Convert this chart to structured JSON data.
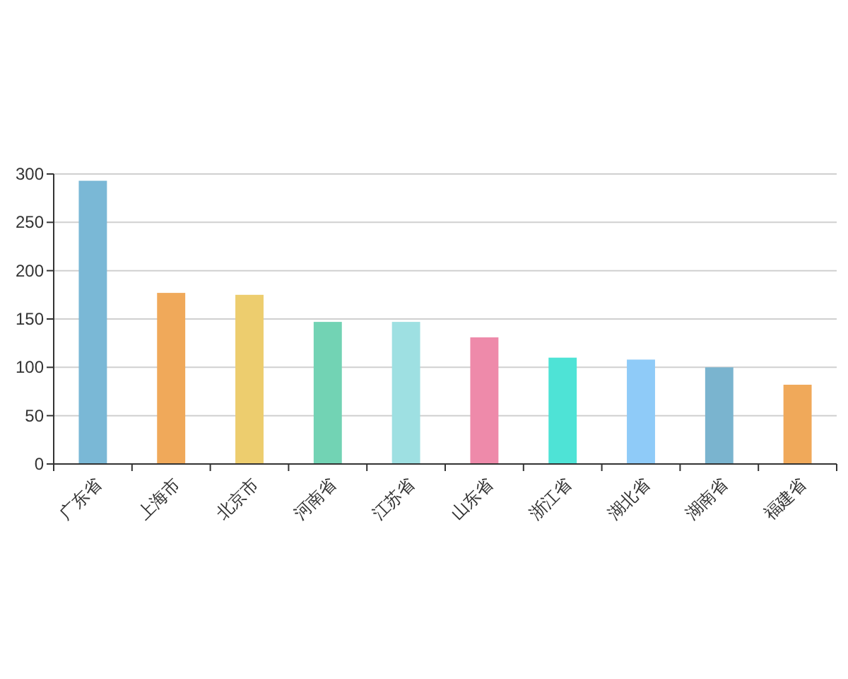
{
  "chart_data": {
    "type": "bar",
    "categories": [
      "广东省",
      "上海市",
      "北京市",
      "河南省",
      "江苏省",
      "山东省",
      "浙江省",
      "湖北省",
      "湖南省",
      "福建省"
    ],
    "values": [
      293,
      177,
      175,
      147,
      147,
      131,
      110,
      108,
      100,
      82
    ],
    "colors": [
      "#7ab8d6",
      "#f0a95a",
      "#edcd6e",
      "#72d3b4",
      "#9ee0e2",
      "#ee8aaa",
      "#4ee3d6",
      "#8fcbf8",
      "#7ab4cf",
      "#f0a95a"
    ],
    "ylim": [
      0,
      300
    ],
    "yticks": [
      0,
      50,
      100,
      150,
      200,
      250,
      300
    ],
    "grid": "y"
  }
}
